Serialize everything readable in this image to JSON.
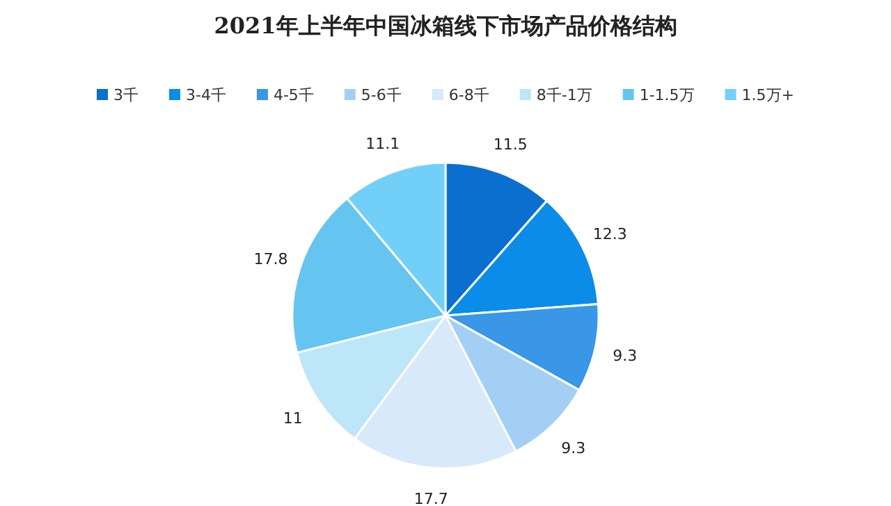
{
  "chart_data": {
    "type": "pie",
    "title": "2021年上半年中国冰箱线下市场产品价格结构",
    "categories": [
      "3千",
      "3-4千",
      "4-5千",
      "5-6千",
      "6-8千",
      "8千-1万",
      "1-1.5万",
      "1.5万+"
    ],
    "values": [
      11.5,
      12.3,
      9.3,
      9.3,
      17.7,
      11,
      17.8,
      11.1
    ],
    "colors": [
      "#0a6fcf",
      "#0a8ce8",
      "#3a96e6",
      "#a3cff5",
      "#d8e9f9",
      "#bde6f8",
      "#66c5f0",
      "#72d0f8"
    ],
    "data_labels": true,
    "legend": "top"
  }
}
